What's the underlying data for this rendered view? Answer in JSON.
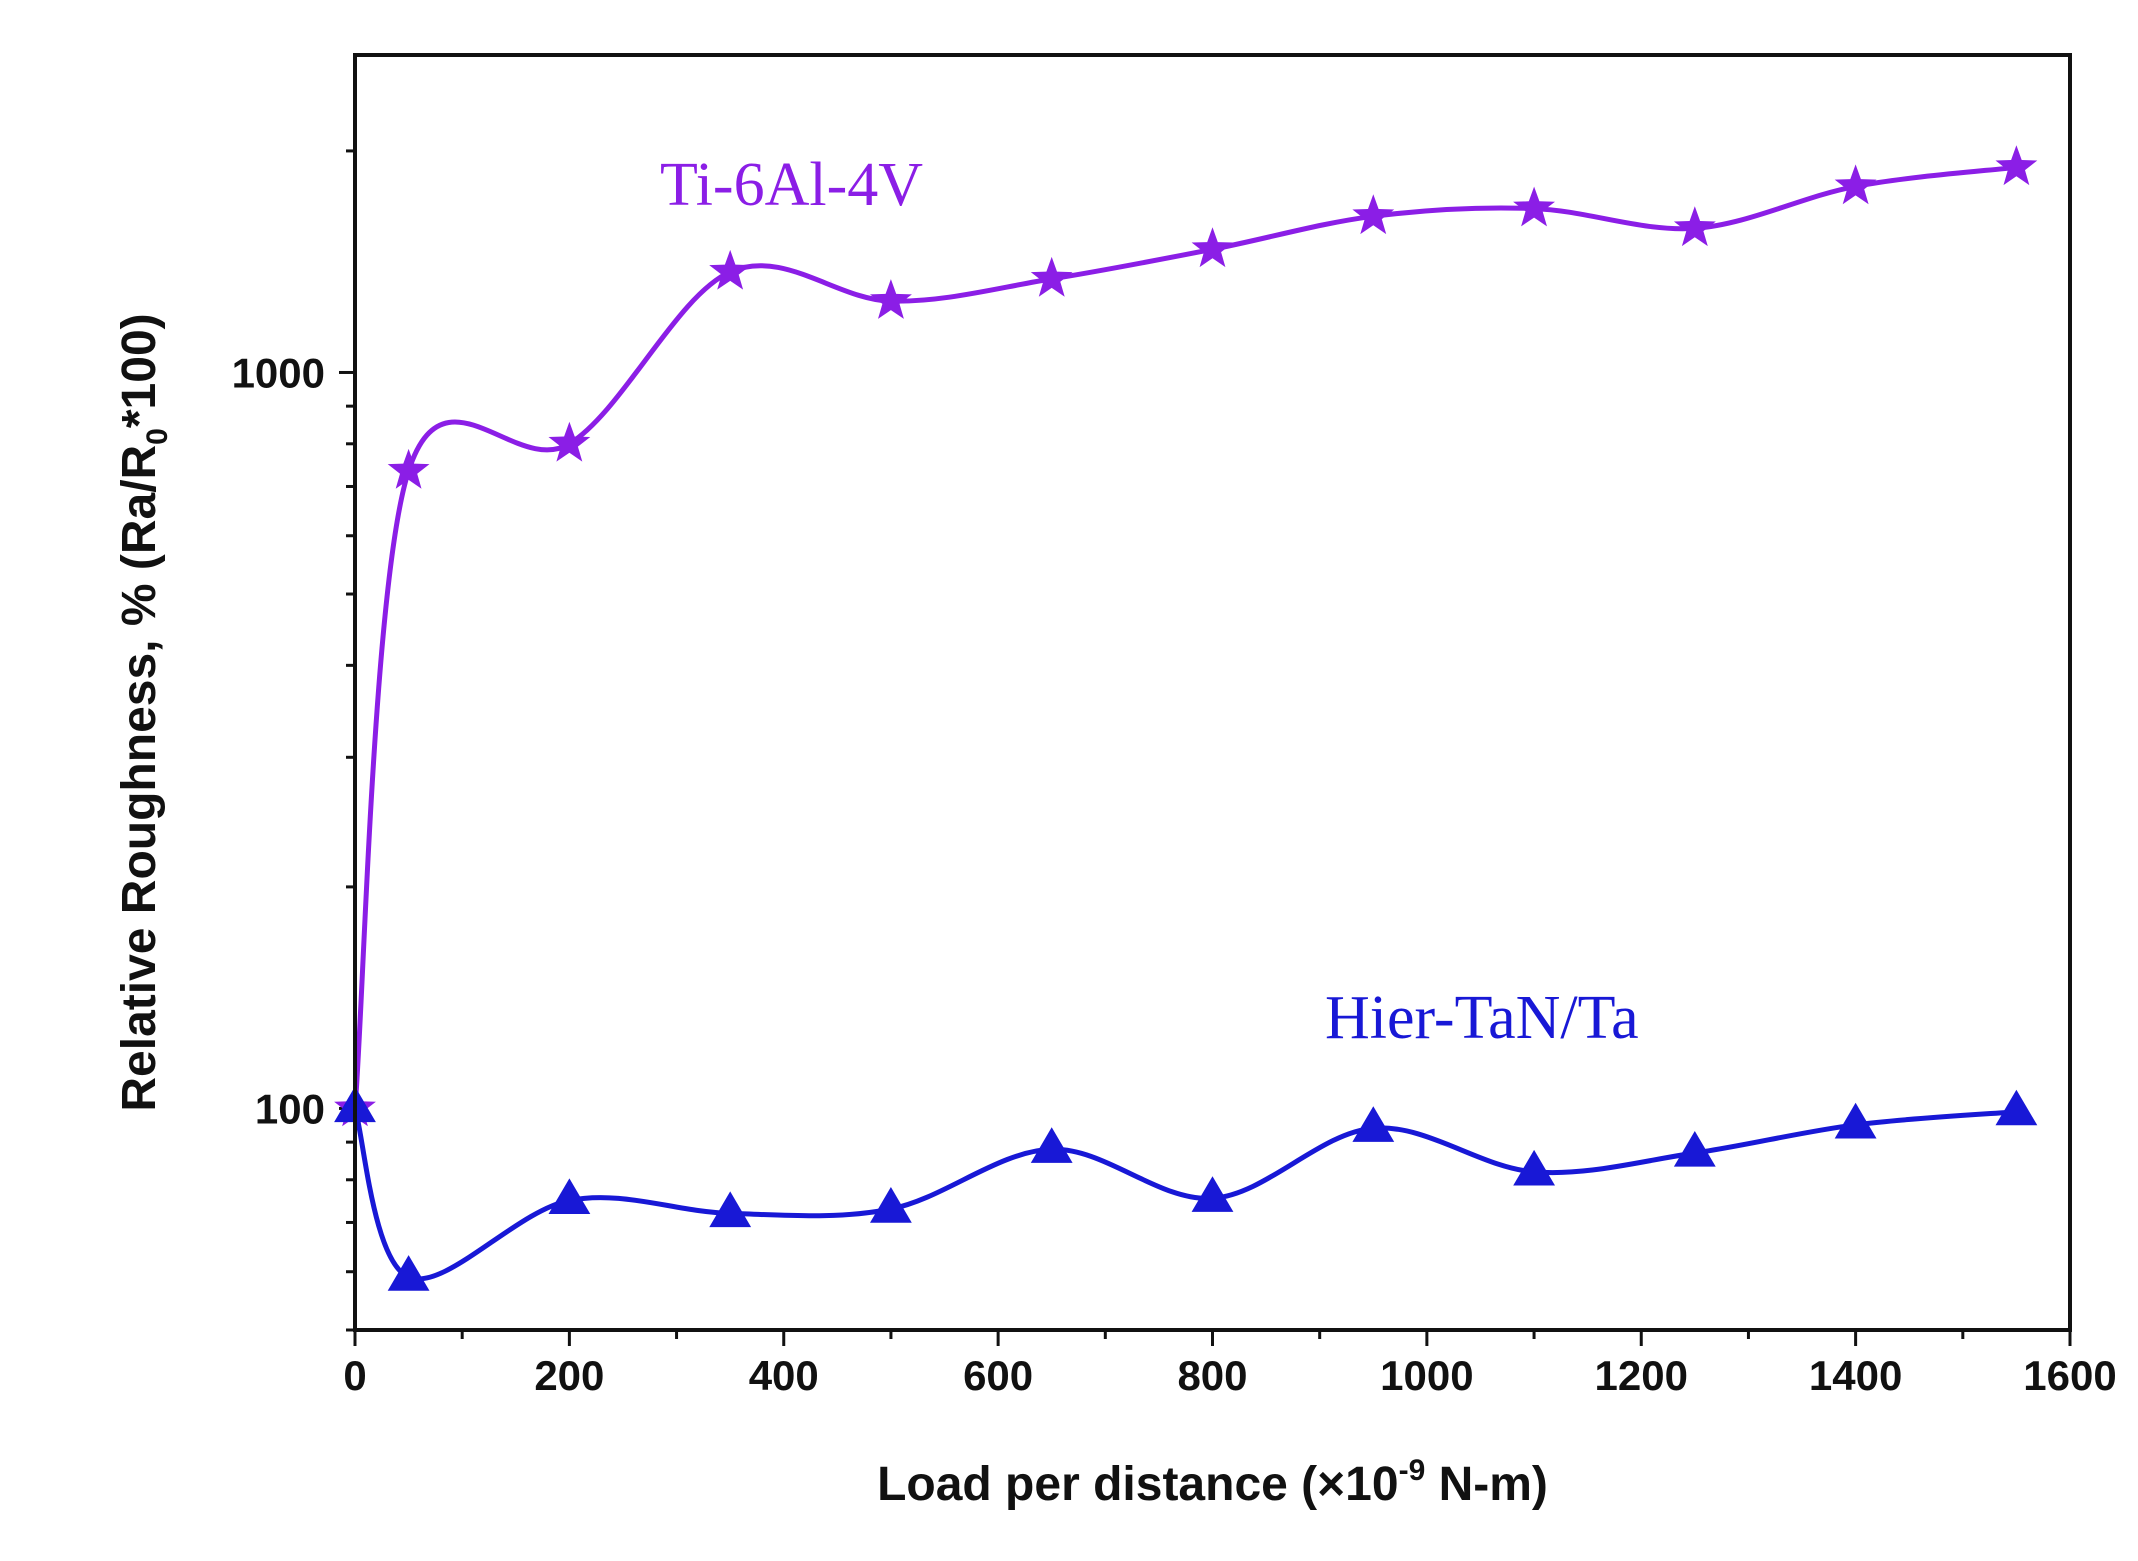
{
  "chart_data": {
    "type": "line",
    "title": "",
    "xlabel": {
      "prefix": "Load per distance (×10",
      "exponent": "-9",
      "suffix": " N-m)"
    },
    "ylabel": {
      "prefix": "Relative Roughness, % (Ra/R",
      "subscript": "0",
      "suffix": "*100)"
    },
    "xlim": [
      0,
      1600
    ],
    "ylim": [
      50,
      2700
    ],
    "yscale": "log",
    "x_ticks": [
      "0",
      "200",
      "400",
      "600",
      "800",
      "1000",
      "1200",
      "1400",
      "1600"
    ],
    "y_ticks": [
      "100",
      "1000"
    ],
    "grid": false,
    "series": [
      {
        "name": "Ti-6Al-4V",
        "color": "#8b1ee6",
        "marker": "star",
        "x": [
          0,
          50,
          200,
          350,
          500,
          650,
          800,
          950,
          1100,
          1250,
          1400,
          1550
        ],
        "values": [
          100,
          735,
          800,
          1370,
          1250,
          1340,
          1470,
          1630,
          1670,
          1570,
          1790,
          1900
        ]
      },
      {
        "name": "Hier-TaN/Ta",
        "color": "#1818d6",
        "marker": "triangle",
        "x": [
          0,
          50,
          200,
          350,
          500,
          650,
          800,
          950,
          1100,
          1250,
          1400,
          1550
        ],
        "values": [
          100,
          59,
          75,
          72,
          73,
          88,
          75.5,
          94,
          82,
          87,
          95,
          99
        ]
      }
    ]
  }
}
